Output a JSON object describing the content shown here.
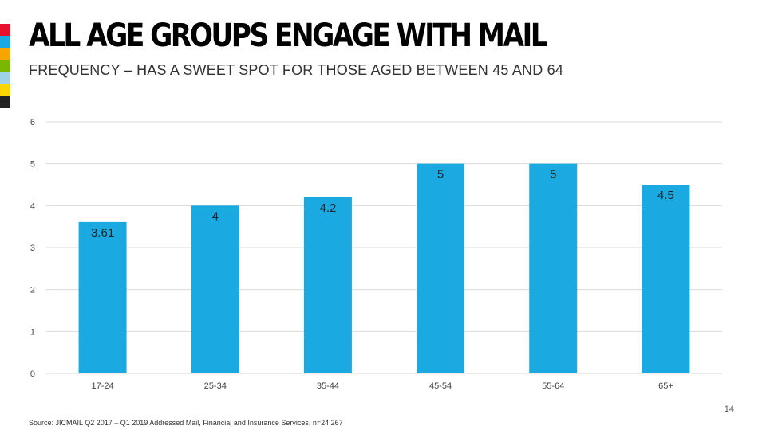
{
  "slide": {
    "title": "ALL AGE GROUPS ENGAGE WITH MAIL",
    "subtitle": "FREQUENCY – HAS A SWEET SPOT FOR THOSE AGED BETWEEN 45 AND 64",
    "source": "Source:  JICMAIL Q2 2017 – Q1 2019 Addressed Mail, Financial and Insurance Services, n=24,267",
    "page_number": "14",
    "strip_colors": [
      "#e8112d",
      "#1ba9e1",
      "#f7a600",
      "#7ab800",
      "#9fd1e8",
      "#ffd500",
      "#222222"
    ]
  },
  "chart_data": {
    "type": "bar",
    "title": "",
    "xlabel": "",
    "ylabel": "",
    "categories": [
      "17-24",
      "25-34",
      "35-44",
      "45-54",
      "55-64",
      "65+"
    ],
    "values": [
      3.61,
      4,
      4.2,
      5,
      5,
      4.5
    ],
    "value_labels": [
      "3.61",
      "4",
      "4.2",
      "5",
      "5",
      "4.5"
    ],
    "ylim": [
      0,
      6
    ],
    "yticks": [
      "0",
      "1",
      "2",
      "3",
      "4",
      "5",
      "6"
    ],
    "grid": true,
    "bar_color": "#1ba9e1"
  }
}
